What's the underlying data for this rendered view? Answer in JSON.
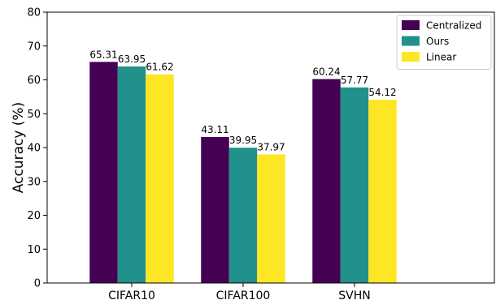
{
  "chart_data": {
    "type": "bar",
    "title": "",
    "xlabel": "",
    "ylabel": "Accuracy (%)",
    "ylim": [
      0,
      80
    ],
    "yticks": [
      0,
      10,
      20,
      30,
      40,
      50,
      60,
      70,
      80
    ],
    "grid": false,
    "legend_position": "top-right",
    "categories": [
      "CIFAR10",
      "CIFAR100",
      "SVHN"
    ],
    "series": [
      {
        "name": "Centralized",
        "color": "#440154",
        "values": [
          65.31,
          43.11,
          60.24
        ],
        "labels": [
          "65.31",
          "43.11",
          "60.24"
        ]
      },
      {
        "name": "Ours",
        "color": "#21918c",
        "values": [
          63.95,
          39.95,
          57.77
        ],
        "labels": [
          "63.95",
          "39.95",
          "57.77"
        ]
      },
      {
        "name": "Linear",
        "color": "#fde725",
        "values": [
          61.62,
          37.97,
          54.12
        ],
        "labels": [
          "61.62",
          "37.97",
          "54.12"
        ]
      }
    ]
  }
}
